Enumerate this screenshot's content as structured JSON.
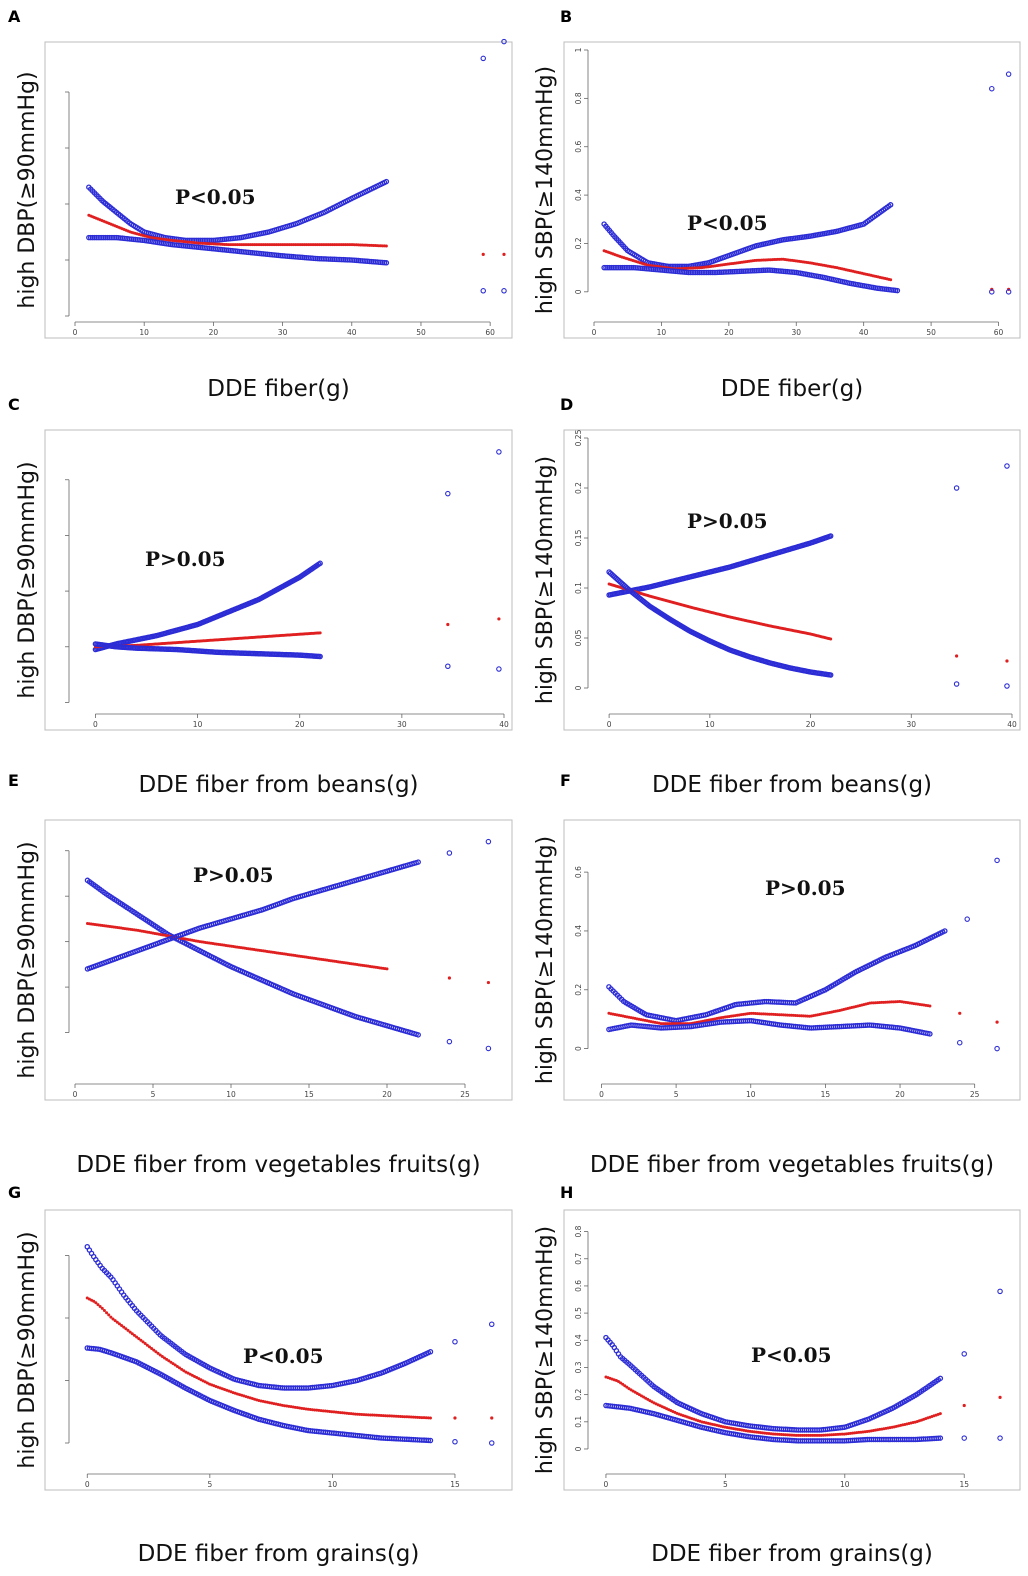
{
  "chart_data": [
    {
      "panel": "A",
      "type": "scatter",
      "xlabel": "DDE fiber(g)",
      "ylabel": "high DBP(≥90mmHg)",
      "annotation": "P<0.05",
      "xlim": [
        0,
        62
      ],
      "ylim": [
        0,
        0.95
      ],
      "xticks": [
        0,
        10,
        20,
        30,
        40,
        50,
        60
      ],
      "yticks": [
        0.0,
        0.2,
        0.4,
        0.6,
        0.8
      ],
      "show_xtick_labels": true,
      "show_ytick_labels": false,
      "series": [
        {
          "role": "ci_upper",
          "color": "#2d2dd6",
          "x": [
            2,
            4,
            6,
            8,
            10,
            13,
            16,
            20,
            24,
            28,
            32,
            36,
            40,
            45,
            59,
            62
          ],
          "y": [
            0.46,
            0.41,
            0.37,
            0.33,
            0.3,
            0.28,
            0.27,
            0.27,
            0.28,
            0.3,
            0.33,
            0.37,
            0.42,
            0.48,
            0.92,
            0.98
          ]
        },
        {
          "role": "estimate",
          "color": "#e02020",
          "x": [
            2,
            5,
            8,
            11,
            14,
            18,
            22,
            26,
            30,
            35,
            40,
            45,
            59,
            62
          ],
          "y": [
            0.36,
            0.33,
            0.3,
            0.28,
            0.27,
            0.26,
            0.255,
            0.255,
            0.255,
            0.255,
            0.255,
            0.25,
            0.22,
            0.22
          ]
        },
        {
          "role": "ci_lower",
          "color": "#2d2dd6",
          "x": [
            2,
            6,
            10,
            14,
            18,
            22,
            26,
            30,
            35,
            40,
            45,
            59,
            62
          ],
          "y": [
            0.28,
            0.28,
            0.27,
            0.255,
            0.245,
            0.235,
            0.225,
            0.215,
            0.205,
            0.2,
            0.19,
            0.09,
            0.09
          ]
        }
      ]
    },
    {
      "panel": "B",
      "type": "scatter",
      "xlabel": "DDE fiber(g)",
      "ylabel": "high SBP(≥140mmHg)",
      "annotation": "P<0.05",
      "xlim": [
        0,
        62
      ],
      "ylim": [
        -0.1,
        1.0
      ],
      "xticks": [
        0,
        10,
        20,
        30,
        40,
        50,
        60
      ],
      "yticks": [
        0.0,
        0.2,
        0.4,
        0.6,
        0.8,
        1.0
      ],
      "show_xtick_labels": true,
      "show_ytick_labels": true,
      "series": [
        {
          "role": "ci_upper",
          "color": "#2d2dd6",
          "x": [
            1.5,
            3,
            5,
            8,
            11,
            14,
            17,
            20,
            24,
            28,
            32,
            36,
            40,
            44,
            59,
            61.5
          ],
          "y": [
            0.28,
            0.23,
            0.17,
            0.12,
            0.105,
            0.105,
            0.12,
            0.15,
            0.19,
            0.215,
            0.23,
            0.25,
            0.28,
            0.36,
            0.84,
            0.9
          ]
        },
        {
          "role": "estimate",
          "color": "#e02020",
          "x": [
            1.5,
            4,
            8,
            12,
            16,
            20,
            24,
            28,
            32,
            36,
            40,
            44,
            59,
            61.5
          ],
          "y": [
            0.17,
            0.145,
            0.11,
            0.095,
            0.1,
            0.115,
            0.13,
            0.135,
            0.12,
            0.1,
            0.075,
            0.05,
            0.01,
            0.01
          ]
        },
        {
          "role": "ci_lower",
          "color": "#2d2dd6",
          "x": [
            1.5,
            6,
            10,
            14,
            18,
            22,
            26,
            30,
            34,
            38,
            42,
            45,
            59,
            61.5
          ],
          "y": [
            0.1,
            0.1,
            0.09,
            0.08,
            0.08,
            0.085,
            0.09,
            0.08,
            0.06,
            0.035,
            0.015,
            0.005,
            0.0,
            0.0
          ]
        }
      ]
    },
    {
      "panel": "C",
      "type": "scatter",
      "xlabel": "DDE fiber from beans(g)",
      "ylabel": "high DBP(≥90mmHg)",
      "annotation": "P>0.05",
      "xlim": [
        -2,
        40
      ],
      "ylim": [
        -0.02,
        0.95
      ],
      "xticks": [
        0,
        10,
        20,
        30,
        40
      ],
      "yticks": [
        0.0,
        0.2,
        0.4,
        0.6,
        0.8
      ],
      "show_xtick_labels": true,
      "show_ytick_labels": false,
      "series": [
        {
          "role": "ci_upper",
          "color": "#2d2dd6",
          "x": [
            0,
            2,
            4,
            6,
            8,
            10,
            12,
            14,
            16,
            18,
            20,
            22,
            34.5,
            39.5
          ],
          "y": [
            0.19,
            0.21,
            0.225,
            0.24,
            0.26,
            0.28,
            0.31,
            0.34,
            0.37,
            0.41,
            0.45,
            0.5,
            0.75,
            0.9
          ]
        },
        {
          "role": "estimate",
          "color": "#e02020",
          "x": [
            0,
            4,
            8,
            12,
            16,
            20,
            22,
            34.5,
            39.5
          ],
          "y": [
            0.2,
            0.205,
            0.215,
            0.225,
            0.235,
            0.245,
            0.25,
            0.28,
            0.3
          ]
        },
        {
          "role": "ci_lower",
          "color": "#2d2dd6",
          "x": [
            0,
            2,
            4,
            8,
            12,
            16,
            20,
            22,
            34.5,
            39.5
          ],
          "y": [
            0.21,
            0.2,
            0.195,
            0.19,
            0.18,
            0.175,
            0.17,
            0.165,
            0.13,
            0.12
          ]
        }
      ]
    },
    {
      "panel": "D",
      "type": "scatter",
      "xlabel": "DDE fiber from beans(g)",
      "ylabel": "high SBP(≥140mmHg)",
      "annotation": "P>0.05",
      "xlim": [
        -1.5,
        40
      ],
      "ylim": [
        -0.02,
        0.25
      ],
      "xticks": [
        0,
        10,
        20,
        30,
        40
      ],
      "yticks": [
        0.0,
        0.05,
        0.1,
        0.15,
        0.2,
        0.25
      ],
      "show_xtick_labels": true,
      "show_ytick_labels": true,
      "series": [
        {
          "role": "ci_upper",
          "color": "#2d2dd6",
          "x": [
            0,
            2,
            4,
            6,
            8,
            10,
            12,
            14,
            16,
            18,
            20,
            22,
            34.5,
            39.5
          ],
          "y": [
            0.093,
            0.097,
            0.101,
            0.106,
            0.111,
            0.116,
            0.121,
            0.127,
            0.133,
            0.139,
            0.145,
            0.152,
            0.2,
            0.222
          ]
        },
        {
          "role": "estimate",
          "color": "#e02020",
          "x": [
            0,
            4,
            8,
            12,
            16,
            20,
            22,
            34.5,
            39.5
          ],
          "y": [
            0.104,
            0.092,
            0.081,
            0.071,
            0.062,
            0.054,
            0.049,
            0.032,
            0.027
          ]
        },
        {
          "role": "ci_lower",
          "color": "#2d2dd6",
          "x": [
            0,
            2,
            4,
            6,
            8,
            10,
            12,
            14,
            16,
            18,
            20,
            22,
            34.5,
            39.5
          ],
          "y": [
            0.116,
            0.098,
            0.082,
            0.069,
            0.057,
            0.047,
            0.038,
            0.031,
            0.025,
            0.02,
            0.016,
            0.013,
            0.004,
            0.002
          ]
        }
      ]
    },
    {
      "panel": "E",
      "type": "scatter",
      "xlabel": "DDE fiber from vegetables fruits(g)",
      "ylabel": "high DBP(≥90mmHg)",
      "annotation": "P>0.05",
      "xlim": [
        0,
        27.5
      ],
      "ylim": [
        0.04,
        0.15
      ],
      "xticks": [
        0,
        5,
        10,
        15,
        20,
        25
      ],
      "yticks": [
        0.06,
        0.08,
        0.1,
        0.12,
        0.14
      ],
      "show_xtick_labels": true,
      "show_ytick_labels": false,
      "series": [
        {
          "role": "ci_up_to_down",
          "color": "#2d2dd6",
          "x": [
            0.8,
            2,
            4,
            6,
            8,
            10,
            12,
            14,
            16,
            18,
            20,
            22,
            24,
            26.5
          ],
          "y": [
            0.127,
            0.121,
            0.112,
            0.103,
            0.096,
            0.089,
            0.083,
            0.077,
            0.072,
            0.067,
            0.063,
            0.059,
            0.056,
            0.053
          ]
        },
        {
          "role": "estimate",
          "color": "#e02020",
          "x": [
            0.8,
            4,
            8,
            12,
            16,
            20,
            24,
            26.5
          ],
          "y": [
            0.108,
            0.105,
            0.1,
            0.096,
            0.092,
            0.088,
            0.084,
            0.082
          ]
        },
        {
          "role": "ci_down_to_up",
          "color": "#2d2dd6",
          "x": [
            0.8,
            2,
            4,
            6,
            8,
            10,
            12,
            14,
            16,
            18,
            20,
            22,
            24,
            26.5
          ],
          "y": [
            0.088,
            0.091,
            0.096,
            0.101,
            0.106,
            0.11,
            0.114,
            0.119,
            0.123,
            0.127,
            0.131,
            0.135,
            0.139,
            0.144
          ]
        }
      ]
    },
    {
      "panel": "F",
      "type": "scatter",
      "xlabel": "DDE fiber from vegetables fruits(g)",
      "ylabel": "high SBP(≥140mmHg)",
      "annotation": "P>0.05",
      "xlim": [
        -0.5,
        27.5
      ],
      "ylim": [
        -0.1,
        0.75
      ],
      "xticks": [
        0,
        5,
        10,
        15,
        20,
        25
      ],
      "yticks": [
        0.0,
        0.2,
        0.4,
        0.6
      ],
      "show_xtick_labels": true,
      "show_ytick_labels": true,
      "series": [
        {
          "role": "ci_upper",
          "color": "#2d2dd6",
          "x": [
            0.5,
            1.5,
            3,
            5,
            7,
            9,
            11,
            13,
            15,
            17,
            19,
            21,
            23,
            24.5,
            26.5
          ],
          "y": [
            0.21,
            0.16,
            0.115,
            0.095,
            0.115,
            0.15,
            0.16,
            0.155,
            0.2,
            0.26,
            0.31,
            0.35,
            0.4,
            0.44,
            0.64
          ]
        },
        {
          "role": "estimate",
          "color": "#e02020",
          "x": [
            0.5,
            2,
            4,
            6,
            8,
            10,
            12,
            14,
            16,
            18,
            20,
            22,
            24,
            26.5
          ],
          "y": [
            0.12,
            0.105,
            0.085,
            0.085,
            0.105,
            0.12,
            0.115,
            0.11,
            0.13,
            0.155,
            0.16,
            0.145,
            0.12,
            0.09
          ]
        },
        {
          "role": "ci_lower",
          "color": "#2d2dd6",
          "x": [
            0.5,
            2,
            4,
            6,
            8,
            10,
            12,
            14,
            16,
            18,
            20,
            22,
            24,
            26.5
          ],
          "y": [
            0.065,
            0.08,
            0.07,
            0.075,
            0.09,
            0.095,
            0.08,
            0.07,
            0.075,
            0.08,
            0.07,
            0.05,
            0.02,
            0.0
          ]
        }
      ]
    },
    {
      "panel": "G",
      "type": "scatter",
      "xlabel": "DDE fiber from grains(g)",
      "ylabel": "high DBP(≥90mmHg)",
      "annotation": "P<0.05",
      "xlim": [
        -0.5,
        17
      ],
      "ylim": [
        0.03,
        0.23
      ],
      "xticks": [
        0,
        5,
        10,
        15
      ],
      "yticks": [
        0.05,
        0.1,
        0.15,
        0.2
      ],
      "show_xtick_labels": true,
      "show_ytick_labels": false,
      "series": [
        {
          "role": "ci_upper",
          "color": "#2d2dd6",
          "x": [
            0,
            0.3,
            0.6,
            1,
            1.5,
            2,
            3,
            4,
            5,
            6,
            7,
            8,
            9,
            10,
            11,
            12,
            13,
            14,
            15,
            16.5
          ],
          "y": [
            0.207,
            0.198,
            0.19,
            0.182,
            0.168,
            0.156,
            0.136,
            0.121,
            0.11,
            0.101,
            0.096,
            0.094,
            0.094,
            0.096,
            0.1,
            0.106,
            0.114,
            0.123,
            0.131,
            0.145
          ]
        },
        {
          "role": "estimate",
          "color": "#e02020",
          "x": [
            0,
            0.3,
            0.6,
            1,
            2,
            3,
            4,
            5,
            6,
            7,
            8,
            9,
            10,
            11,
            12,
            13,
            14,
            15,
            16.5
          ],
          "y": [
            0.166,
            0.163,
            0.158,
            0.15,
            0.135,
            0.12,
            0.107,
            0.097,
            0.09,
            0.084,
            0.08,
            0.077,
            0.075,
            0.073,
            0.072,
            0.071,
            0.07,
            0.07,
            0.07
          ]
        },
        {
          "role": "ci_lower",
          "color": "#2d2dd6",
          "x": [
            0,
            0.5,
            1,
            2,
            3,
            4,
            5,
            6,
            7,
            8,
            9,
            10,
            11,
            12,
            13,
            14,
            15,
            16.5
          ],
          "y": [
            0.126,
            0.125,
            0.122,
            0.115,
            0.105,
            0.094,
            0.084,
            0.076,
            0.069,
            0.064,
            0.06,
            0.058,
            0.056,
            0.054,
            0.053,
            0.052,
            0.051,
            0.05
          ]
        }
      ]
    },
    {
      "panel": "H",
      "type": "scatter",
      "xlabel": "DDE fiber from grains(g)",
      "ylabel": "high SBP(≥140mmHg)",
      "annotation": "P<0.05",
      "xlim": [
        -0.5,
        17
      ],
      "ylim": [
        -0.07,
        0.85
      ],
      "xticks": [
        0,
        5,
        10,
        15
      ],
      "yticks": [
        0.0,
        0.1,
        0.2,
        0.3,
        0.4,
        0.5,
        0.6,
        0.7,
        0.8
      ],
      "show_xtick_labels": true,
      "show_ytick_labels": true,
      "series": [
        {
          "role": "ci_upper",
          "color": "#2d2dd6",
          "x": [
            0,
            0.3,
            0.6,
            1,
            1.5,
            2,
            3,
            4,
            5,
            6,
            7,
            8,
            9,
            10,
            11,
            12,
            13,
            14,
            15,
            16.5
          ],
          "y": [
            0.41,
            0.38,
            0.34,
            0.31,
            0.27,
            0.23,
            0.17,
            0.13,
            0.1,
            0.085,
            0.075,
            0.07,
            0.07,
            0.08,
            0.11,
            0.15,
            0.2,
            0.26,
            0.35,
            0.58
          ]
        },
        {
          "role": "estimate",
          "color": "#e02020",
          "x": [
            0,
            0.5,
            1,
            2,
            3,
            4,
            5,
            6,
            7,
            8,
            9,
            10,
            11,
            12,
            13,
            14,
            15,
            16.5
          ],
          "y": [
            0.265,
            0.25,
            0.22,
            0.17,
            0.13,
            0.1,
            0.08,
            0.065,
            0.055,
            0.05,
            0.05,
            0.055,
            0.065,
            0.08,
            0.1,
            0.13,
            0.16,
            0.19
          ]
        },
        {
          "role": "ci_lower",
          "color": "#2d2dd6",
          "x": [
            0,
            0.5,
            1,
            2,
            3,
            4,
            5,
            6,
            7,
            8,
            9,
            10,
            11,
            12,
            13,
            14,
            15,
            16.5
          ],
          "y": [
            0.16,
            0.155,
            0.15,
            0.13,
            0.105,
            0.08,
            0.06,
            0.045,
            0.035,
            0.03,
            0.03,
            0.03,
            0.035,
            0.035,
            0.035,
            0.04,
            0.04,
            0.04
          ]
        }
      ]
    }
  ]
}
